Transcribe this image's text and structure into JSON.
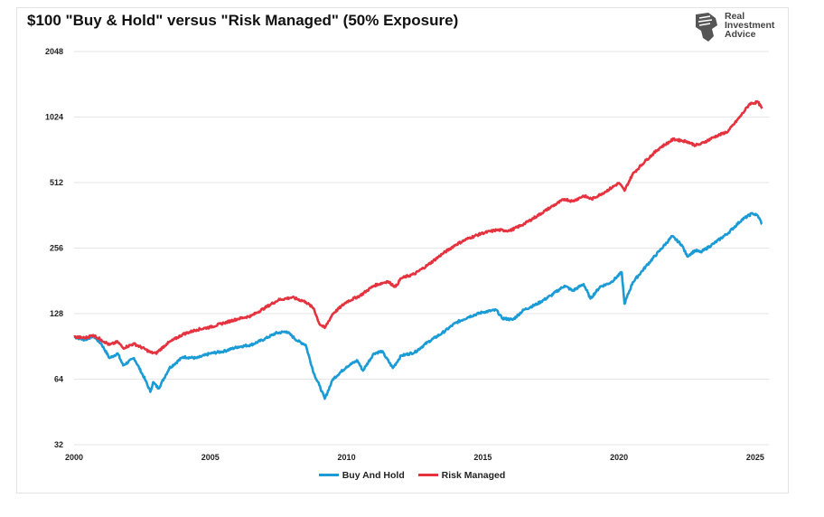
{
  "chart_data": {
    "type": "line",
    "title": "$100 \"Buy & Hold\" versus \"Risk Managed\" (50% Exposure)",
    "xlabel": "",
    "ylabel": "",
    "y_scale": "log2",
    "ylim": [
      32,
      2048
    ],
    "xlim": [
      2000,
      2025.5
    ],
    "y_ticks": [
      "32",
      "64",
      "128",
      "256",
      "512",
      "1024",
      "2048"
    ],
    "x_ticks": [
      "2000",
      "2005",
      "2010",
      "2015",
      "2020",
      "2025"
    ],
    "grid": "horizontal",
    "legend_position": "bottom",
    "series": [
      {
        "name": "Buy And Hold",
        "color": "#1a9bd6",
        "points": [
          [
            2000.0,
            100
          ],
          [
            2000.4,
            97
          ],
          [
            2000.7,
            101
          ],
          [
            2001.0,
            93
          ],
          [
            2001.3,
            80
          ],
          [
            2001.6,
            84
          ],
          [
            2001.8,
            74
          ],
          [
            2002.2,
            80
          ],
          [
            2002.6,
            64
          ],
          [
            2002.8,
            56
          ],
          [
            2002.9,
            62
          ],
          [
            2003.1,
            58
          ],
          [
            2003.5,
            72
          ],
          [
            2004.0,
            81
          ],
          [
            2004.5,
            80
          ],
          [
            2005.0,
            84
          ],
          [
            2005.5,
            86
          ],
          [
            2006.0,
            90
          ],
          [
            2006.5,
            92
          ],
          [
            2007.0,
            98
          ],
          [
            2007.4,
            104
          ],
          [
            2007.8,
            106
          ],
          [
            2008.2,
            96
          ],
          [
            2008.5,
            92
          ],
          [
            2008.8,
            68
          ],
          [
            2009.0,
            60
          ],
          [
            2009.2,
            52
          ],
          [
            2009.5,
            64
          ],
          [
            2010.0,
            73
          ],
          [
            2010.4,
            78
          ],
          [
            2010.6,
            70
          ],
          [
            2011.0,
            84
          ],
          [
            2011.3,
            86
          ],
          [
            2011.7,
            72
          ],
          [
            2012.0,
            82
          ],
          [
            2012.5,
            85
          ],
          [
            2013.0,
            95
          ],
          [
            2013.5,
            104
          ],
          [
            2014.0,
            116
          ],
          [
            2014.5,
            124
          ],
          [
            2015.0,
            130
          ],
          [
            2015.5,
            133
          ],
          [
            2015.7,
            122
          ],
          [
            2016.1,
            120
          ],
          [
            2016.5,
            133
          ],
          [
            2017.0,
            142
          ],
          [
            2017.5,
            155
          ],
          [
            2018.0,
            172
          ],
          [
            2018.3,
            163
          ],
          [
            2018.7,
            175
          ],
          [
            2018.95,
            150
          ],
          [
            2019.3,
            170
          ],
          [
            2019.7,
            178
          ],
          [
            2020.1,
            198
          ],
          [
            2020.2,
            142
          ],
          [
            2020.5,
            178
          ],
          [
            2021.0,
            212
          ],
          [
            2021.5,
            250
          ],
          [
            2021.95,
            290
          ],
          [
            2022.3,
            265
          ],
          [
            2022.5,
            235
          ],
          [
            2022.8,
            250
          ],
          [
            2023.0,
            245
          ],
          [
            2023.5,
            270
          ],
          [
            2024.0,
            300
          ],
          [
            2024.5,
            345
          ],
          [
            2024.9,
            370
          ],
          [
            2025.1,
            360
          ],
          [
            2025.25,
            330
          ]
        ]
      },
      {
        "name": "Risk Managed",
        "color": "#e5323f",
        "points": [
          [
            2000.0,
            100
          ],
          [
            2000.4,
            99
          ],
          [
            2000.7,
            102
          ],
          [
            2001.0,
            97
          ],
          [
            2001.3,
            92
          ],
          [
            2001.6,
            95
          ],
          [
            2001.8,
            89
          ],
          [
            2002.2,
            93
          ],
          [
            2002.6,
            88
          ],
          [
            2002.8,
            85
          ],
          [
            2003.0,
            84
          ],
          [
            2003.4,
            93
          ],
          [
            2004.0,
            103
          ],
          [
            2004.5,
            108
          ],
          [
            2005.0,
            111
          ],
          [
            2005.5,
            116
          ],
          [
            2006.0,
            121
          ],
          [
            2006.5,
            125
          ],
          [
            2007.0,
            136
          ],
          [
            2007.5,
            148
          ],
          [
            2008.0,
            152
          ],
          [
            2008.5,
            145
          ],
          [
            2008.8,
            135
          ],
          [
            2009.0,
            115
          ],
          [
            2009.2,
            110
          ],
          [
            2009.5,
            128
          ],
          [
            2010.0,
            145
          ],
          [
            2010.5,
            155
          ],
          [
            2011.0,
            172
          ],
          [
            2011.5,
            180
          ],
          [
            2011.8,
            170
          ],
          [
            2012.0,
            186
          ],
          [
            2012.5,
            195
          ],
          [
            2013.0,
            215
          ],
          [
            2013.5,
            240
          ],
          [
            2014.0,
            265
          ],
          [
            2014.5,
            285
          ],
          [
            2015.0,
            300
          ],
          [
            2015.5,
            310
          ],
          [
            2016.0,
            308
          ],
          [
            2016.5,
            330
          ],
          [
            2017.0,
            360
          ],
          [
            2017.5,
            395
          ],
          [
            2018.0,
            430
          ],
          [
            2018.3,
            420
          ],
          [
            2018.7,
            445
          ],
          [
            2019.0,
            430
          ],
          [
            2019.5,
            465
          ],
          [
            2020.0,
            510
          ],
          [
            2020.2,
            470
          ],
          [
            2020.5,
            560
          ],
          [
            2021.0,
            650
          ],
          [
            2021.5,
            740
          ],
          [
            2022.0,
            810
          ],
          [
            2022.5,
            790
          ],
          [
            2022.8,
            760
          ],
          [
            2023.0,
            770
          ],
          [
            2023.5,
            830
          ],
          [
            2024.0,
            880
          ],
          [
            2024.5,
            1050
          ],
          [
            2024.8,
            1180
          ],
          [
            2025.1,
            1200
          ],
          [
            2025.25,
            1120
          ]
        ]
      }
    ]
  },
  "logo": {
    "line1": "Real",
    "line2": "Investment",
    "line3": "Advice",
    "color": "#444444"
  }
}
